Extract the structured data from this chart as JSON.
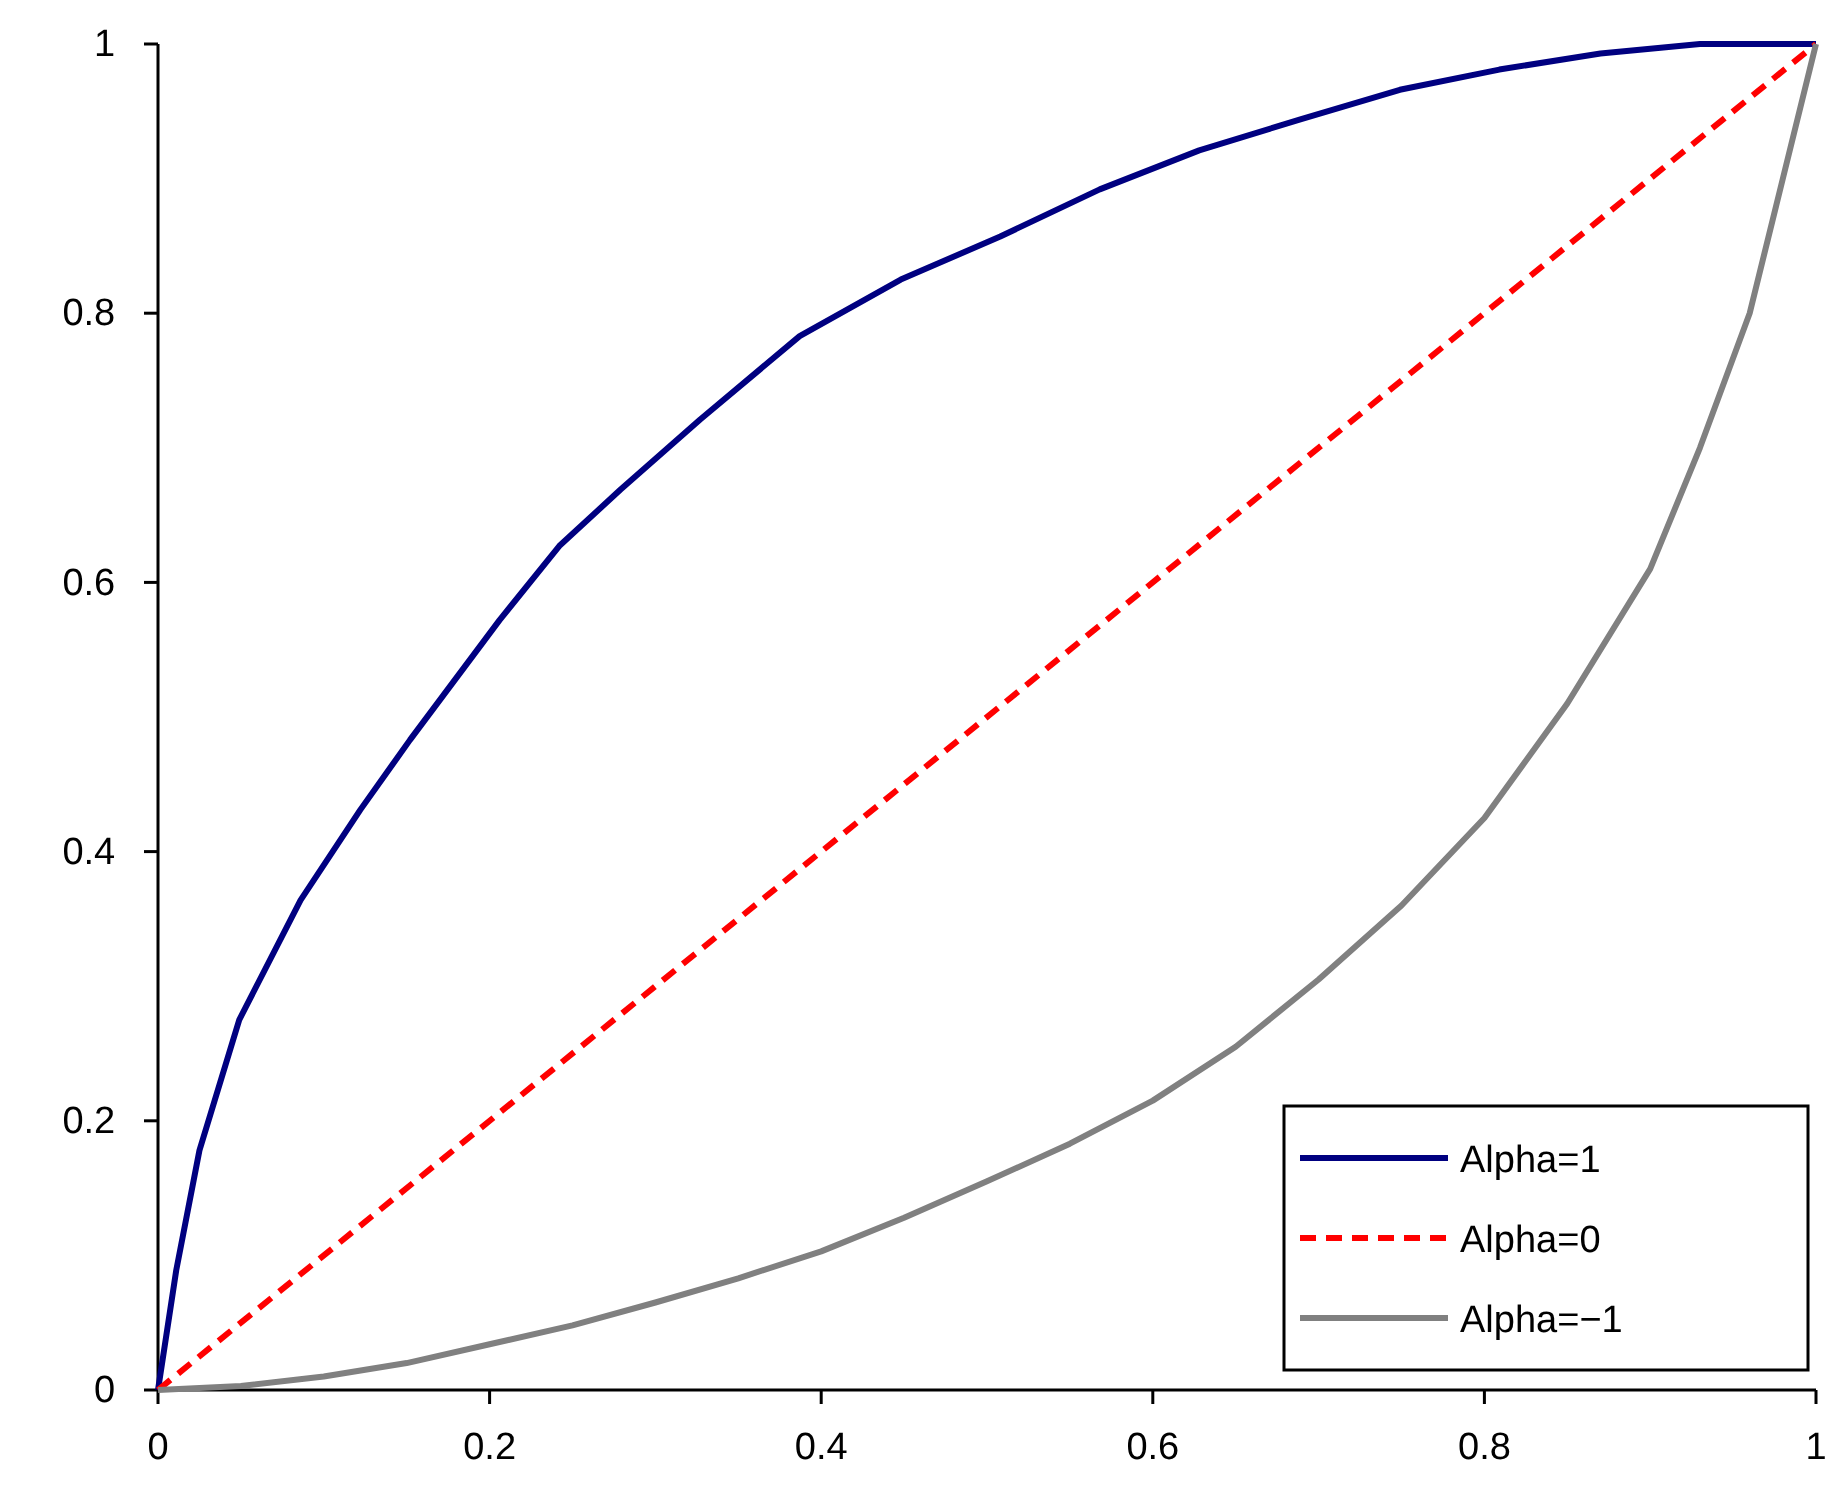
{
  "chart_data": {
    "type": "line",
    "xlim": [
      0,
      1
    ],
    "ylim": [
      0,
      1
    ],
    "xticks": [
      0,
      0.2,
      0.4,
      0.6,
      0.8,
      1
    ],
    "yticks": [
      0,
      0.2,
      0.4,
      0.6,
      0.8,
      1
    ],
    "grid": false,
    "legend": "bottom right",
    "marker": "none",
    "series": [
      {
        "name": "Alpha=1",
        "color": "#000080",
        "line_style": "solid",
        "x": [
          0,
          0.011,
          0.025,
          0.049,
          0.086,
          0.122,
          0.152,
          0.206,
          0.242,
          0.279,
          0.327,
          0.387,
          0.448,
          0.508,
          0.568,
          0.628,
          0.689,
          0.749,
          0.809,
          0.87,
          0.93,
          1
        ],
        "values": [
          0,
          0.089,
          0.178,
          0.275,
          0.364,
          0.431,
          0.483,
          0.572,
          0.627,
          0.669,
          0.721,
          0.783,
          0.825,
          0.857,
          0.892,
          0.921,
          0.944,
          0.966,
          0.981,
          0.993,
          1,
          1
        ]
      },
      {
        "name": "Alpha=0",
        "color": "#ff0000",
        "line_style": "dashed",
        "x": [
          0,
          1
        ],
        "values": [
          0,
          1
        ]
      },
      {
        "name": "Alpha=−1",
        "color": "#808080",
        "line_style": "solid",
        "x": [
          0,
          0.05,
          0.1,
          0.15,
          0.2,
          0.25,
          0.3,
          0.35,
          0.4,
          0.45,
          0.5,
          0.55,
          0.6,
          0.65,
          0.7,
          0.75,
          0.8,
          0.85,
          0.9,
          0.93,
          0.96,
          0.98,
          1
        ],
        "values": [
          0,
          0.003,
          0.01,
          0.02,
          0.034,
          0.048,
          0.065,
          0.083,
          0.103,
          0.128,
          0.155,
          0.183,
          0.215,
          0.255,
          0.305,
          0.36,
          0.425,
          0.51,
          0.61,
          0.7,
          0.8,
          0.9,
          1
        ]
      }
    ]
  }
}
